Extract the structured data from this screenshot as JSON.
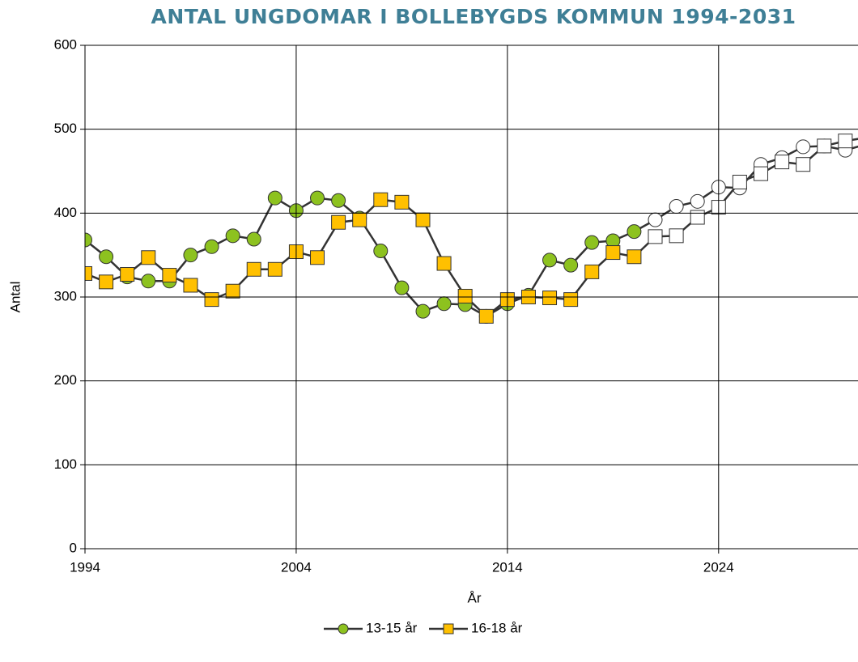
{
  "chart_data": {
    "type": "line",
    "title": "ANTAL UNGDOMAR I BOLLEBYGDS KOMMUN 1994-2031",
    "x_label": "År",
    "y_label": "Antal",
    "x": [
      1994,
      1995,
      1996,
      1997,
      1998,
      1999,
      2000,
      2001,
      2002,
      2003,
      2004,
      2005,
      2006,
      2007,
      2008,
      2009,
      2010,
      2011,
      2012,
      2013,
      2014,
      2015,
      2016,
      2017,
      2018,
      2019,
      2020,
      2021,
      2022,
      2023,
      2024,
      2025,
      2026,
      2027,
      2028,
      2029,
      2030,
      2031
    ],
    "series": [
      {
        "name": "13-15 år",
        "color": "#8dc21f",
        "marker": "circle",
        "values": [
          368,
          348,
          324,
          319,
          319,
          350,
          360,
          373,
          369,
          418,
          403,
          418,
          415,
          394,
          355,
          311,
          283,
          292,
          291,
          277,
          292,
          302,
          344,
          338,
          365,
          367,
          378,
          392,
          408,
          414,
          431,
          430,
          458,
          466,
          479,
          480,
          475,
          482
        ]
      },
      {
        "name": "16-18 år",
        "color": "#ffc000",
        "marker": "square",
        "values": [
          328,
          318,
          327,
          347,
          326,
          314,
          297,
          307,
          333,
          333,
          354,
          347,
          389,
          392,
          416,
          413,
          392,
          340,
          301,
          277,
          297,
          300,
          299,
          297,
          330,
          353,
          348,
          372,
          373,
          395,
          407,
          437,
          447,
          461,
          458,
          480,
          486,
          490
        ]
      }
    ],
    "projected_from": 2021,
    "projected_color": "#ffffff",
    "xlim": [
      1994,
      2030.6
    ],
    "xticks": [
      1994,
      2004,
      2014,
      2024
    ],
    "ylim": [
      0,
      600
    ],
    "yticks": [
      0,
      100,
      200,
      300,
      400,
      500,
      600
    ],
    "grid": true,
    "legend": "bottom"
  }
}
